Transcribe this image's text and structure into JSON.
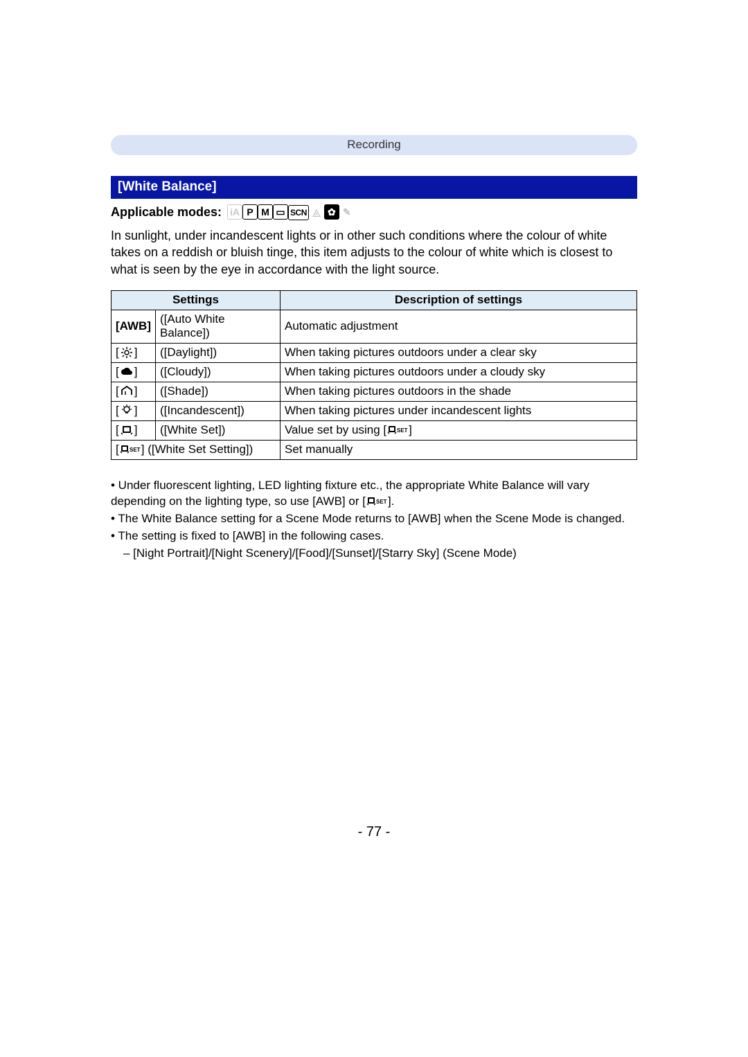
{
  "category_label": "Recording",
  "section_title": "[White Balance]",
  "applicable_label": "Applicable modes:",
  "mode_icons": [
    {
      "name": "mode-ia-icon",
      "glyph": "iA",
      "state": "dim"
    },
    {
      "name": "mode-p-icon",
      "glyph": "P",
      "state": "normal"
    },
    {
      "name": "mode-m-icon",
      "glyph": "M",
      "state": "normal"
    },
    {
      "name": "mode-panorama-icon",
      "glyph": "▭",
      "state": "normal"
    },
    {
      "name": "mode-scn-icon",
      "glyph": "SCN",
      "state": "normal",
      "extra_class": "scn"
    },
    {
      "name": "mode-landscape-icon",
      "glyph": "◬",
      "state": "dim",
      "extra_class": "noborder"
    },
    {
      "name": "mode-portrait-icon",
      "glyph": "✿",
      "state": "filled"
    },
    {
      "name": "mode-palette-icon",
      "glyph": "✎",
      "state": "dim",
      "extra_class": "noborder"
    }
  ],
  "intro_text": "In sunlight, under incandescent lights or in other such conditions where the colour of white takes on a reddish or bluish tinge, this item adjusts to the colour of white which is closest to what is seen by the eye in accordance with the light source.",
  "table": {
    "header_settings": "Settings",
    "header_description": "Description of settings",
    "rows": [
      {
        "symbol_key": "awb_text",
        "symbol_text": "[AWB]",
        "symbol_name": "awb-icon",
        "name": "([Auto White Balance])",
        "desc": "Automatic adjustment"
      },
      {
        "symbol_key": "daylight",
        "symbol_svg": "sun",
        "symbol_name": "daylight-icon",
        "name": "([Daylight])",
        "desc": "When taking pictures outdoors under a clear sky"
      },
      {
        "symbol_key": "cloudy",
        "symbol_svg": "cloud",
        "symbol_name": "cloudy-icon",
        "name": "([Cloudy])",
        "desc": "When taking pictures outdoors under a cloudy sky"
      },
      {
        "symbol_key": "shade",
        "symbol_svg": "shade",
        "symbol_name": "shade-icon",
        "name": "([Shade])",
        "desc": "When taking pictures outdoors in the shade"
      },
      {
        "symbol_key": "incandescent",
        "symbol_svg": "bulb",
        "symbol_name": "incandescent-icon",
        "name": "([Incandescent])",
        "desc": "When taking pictures under incandescent lights"
      },
      {
        "symbol_key": "whiteset",
        "symbol_svg": "wset",
        "symbol_name": "white-set-icon",
        "name": "([White Set])",
        "desc_pre": "Value set by using [",
        "desc_glyph": "wsetset",
        "desc_post": "]"
      },
      {
        "symbol_key": "whitesetsetting",
        "symbol_svg": "wsetset",
        "symbol_name": "white-set-setting-icon",
        "name": "([White Set Setting])",
        "desc": "Set manually",
        "span_symbol_name": true
      }
    ]
  },
  "notes": {
    "b1_pre": "• Under fluorescent lighting, LED lighting fixture etc., the appropriate White Balance will vary depending on the lighting type, so use [AWB] or [",
    "b1_post": "].",
    "b2": "• The White Balance setting for a Scene Mode returns to [AWB] when the Scene Mode is changed.",
    "b3": "• The setting is fixed to [AWB] in the following cases.",
    "b3sub": "– [Night Portrait]/[Night Scenery]/[Food]/[Sunset]/[Starry Sky] (Scene Mode)"
  },
  "page_number": "- 77 -",
  "colors": {
    "pill_bg": "#dbe3f7",
    "section_bg": "#0816a6",
    "table_header_bg": "#e0ecf6"
  }
}
